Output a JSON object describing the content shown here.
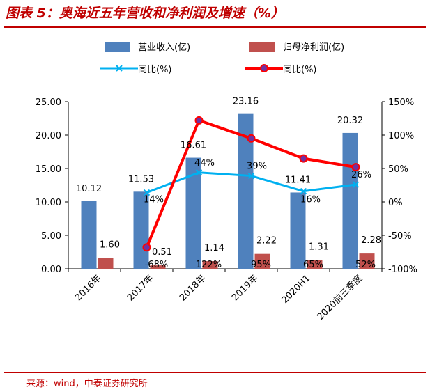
{
  "title": "图表 5：奥海近五年营收和净利润及增速（%）",
  "source": "来源：wind，中泰证券研究所",
  "chart_data": {
    "type": "bar",
    "categories": [
      "2016年",
      "2017年",
      "2018年",
      "2019年",
      "2020H1",
      "2020前三季度"
    ],
    "series": [
      {
        "name": "营业收入(亿)",
        "kind": "bar",
        "axis": "left",
        "color": "#4f81bd",
        "values": [
          10.12,
          11.53,
          16.61,
          23.16,
          11.41,
          20.32
        ],
        "labels": [
          "10.12",
          "11.53",
          "16.61",
          "23.16",
          "11.41",
          "20.32"
        ]
      },
      {
        "name": "归母净利润(亿)",
        "kind": "bar",
        "axis": "left",
        "color": "#c0504d",
        "values": [
          1.6,
          0.51,
          1.14,
          2.22,
          1.31,
          2.28
        ],
        "labels": [
          "1.60",
          "0.51",
          "1.14",
          "2.22",
          "1.31",
          "2.28"
        ]
      },
      {
        "name": "同比(%)",
        "kind": "line",
        "axis": "right",
        "color": "#00b0f0",
        "marker": "x",
        "values": [
          null,
          14,
          44,
          39,
          16,
          26
        ],
        "labels": [
          "",
          "14%",
          "44%",
          "39%",
          "16%",
          "26%"
        ]
      },
      {
        "name": "同比(%)",
        "kind": "line",
        "axis": "right",
        "color": "#ff0000",
        "marker": "circle",
        "values": [
          null,
          -68,
          122,
          95,
          65,
          52
        ],
        "labels": [
          "",
          "-68%",
          "122%",
          "95%",
          "65%",
          "52%"
        ]
      }
    ],
    "y_left": {
      "min": 0,
      "max": 25,
      "step": 5,
      "ticks": [
        "0.00",
        "5.00",
        "10.00",
        "15.00",
        "20.00",
        "25.00"
      ]
    },
    "y_right": {
      "min": -100,
      "max": 150,
      "step": 50,
      "ticks": [
        "-100%",
        "-50%",
        "0%",
        "50%",
        "100%",
        "150%"
      ]
    },
    "legend": "top",
    "grid": false
  }
}
